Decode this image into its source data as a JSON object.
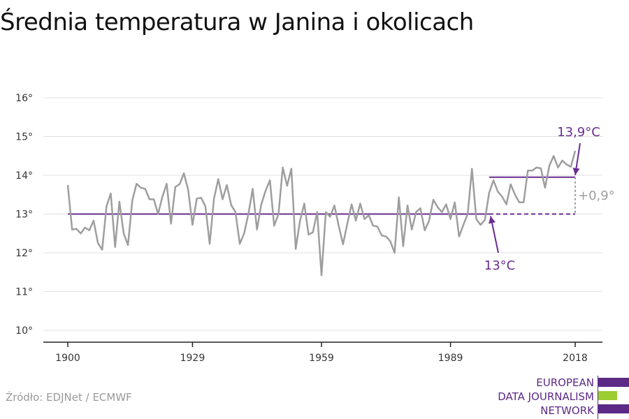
{
  "title": "Średnia temperatura w Janina i okolicach",
  "source": "Źródło: EDJNet / ECMWF",
  "logo": {
    "lines": [
      "EUROPEAN",
      "DATA JOURNALISM",
      "NETWORK"
    ],
    "colors": {
      "purple": "#5b2a86",
      "green": "#9acd32"
    }
  },
  "colors": {
    "series": "#9e9e9e",
    "baseline": "#6a2c91",
    "diff": "#9e9e9e",
    "grid": "#e0e0e0"
  },
  "chart_data": {
    "type": "line",
    "title": "Średnia temperatura w Janina i okolicach",
    "xlabel": "",
    "ylabel": "",
    "xlim": [
      1900,
      2018
    ],
    "ylim": [
      10,
      16
    ],
    "x_ticks": [
      1900,
      1929,
      1959,
      1989,
      2018
    ],
    "x_tick_labels": [
      "1900",
      "1929",
      "1959",
      "1989",
      "2018"
    ],
    "y_ticks": [
      10,
      11,
      12,
      13,
      14,
      15,
      16
    ],
    "y_tick_labels": [
      "10°",
      "11°",
      "12°",
      "13°",
      "14°",
      "15°",
      "16°"
    ],
    "grid": "horizontal",
    "series": [
      {
        "x": [
          1900,
          1901,
          1902,
          1903,
          1904,
          1905,
          1906,
          1907,
          1908,
          1909,
          1910,
          1911,
          1912,
          1913,
          1914,
          1915,
          1916,
          1917,
          1918,
          1919,
          1920,
          1921,
          1922,
          1923,
          1924,
          1925,
          1926,
          1927,
          1928,
          1929,
          1930,
          1931,
          1932,
          1933,
          1934,
          1935,
          1936,
          1937,
          1938,
          1939,
          1940,
          1941,
          1942,
          1943,
          1944,
          1945,
          1946,
          1947,
          1948,
          1949,
          1950,
          1951,
          1952,
          1953,
          1954,
          1955,
          1956,
          1957,
          1958,
          1959,
          1960,
          1961,
          1962,
          1963,
          1964,
          1965,
          1966,
          1967,
          1968,
          1969,
          1970,
          1971,
          1972,
          1973,
          1974,
          1975,
          1976,
          1977,
          1978,
          1979,
          1980,
          1981,
          1982,
          1983,
          1984,
          1985,
          1986,
          1987,
          1988,
          1989,
          1990,
          1991,
          1992,
          1993,
          1994,
          1995,
          1996,
          1997,
          1998,
          1999,
          2000,
          2001,
          2002,
          2003,
          2004,
          2005,
          2006,
          2007,
          2008,
          2009,
          2010,
          2011,
          2012,
          2013,
          2014,
          2015,
          2016,
          2017,
          2018
        ],
        "values": [
          13.75,
          12.6,
          12.62,
          12.5,
          12.65,
          12.58,
          12.83,
          12.25,
          12.08,
          13.2,
          13.53,
          12.15,
          13.32,
          12.5,
          12.2,
          13.35,
          13.78,
          13.68,
          13.65,
          13.38,
          13.38,
          13.0,
          13.45,
          13.78,
          12.75,
          13.7,
          13.77,
          14.05,
          13.62,
          12.72,
          13.4,
          13.42,
          13.2,
          12.23,
          13.4,
          13.9,
          13.38,
          13.75,
          13.23,
          13.05,
          12.23,
          12.5,
          13.0,
          13.65,
          12.6,
          13.25,
          13.6,
          13.87,
          12.7,
          13.0,
          14.2,
          13.73,
          14.17,
          12.1,
          12.82,
          13.27,
          12.47,
          12.53,
          13.05,
          11.42,
          13.05,
          12.93,
          13.22,
          12.7,
          12.22,
          12.75,
          13.25,
          12.83,
          13.27,
          12.87,
          12.97,
          12.7,
          12.68,
          12.45,
          12.42,
          12.3,
          12.0,
          13.43,
          12.17,
          13.22,
          12.6,
          13.05,
          13.15,
          12.58,
          12.82,
          13.37,
          13.18,
          13.05,
          13.25,
          12.87,
          13.3,
          12.42,
          12.72,
          13.0,
          14.17,
          12.87,
          12.72,
          12.85,
          13.55,
          13.87,
          13.58,
          13.45,
          13.25,
          13.77,
          13.5,
          13.3,
          13.3,
          14.12,
          14.12,
          14.2,
          14.18,
          13.68,
          14.25,
          14.5,
          14.2,
          14.38,
          14.28,
          14.22,
          14.63
        ]
      }
    ],
    "baseline": {
      "value": 13.0,
      "from": 1900,
      "to": 2018
    },
    "recent_mean": {
      "value": 13.95,
      "from": 1998,
      "to": 2018
    },
    "annotations": [
      {
        "text": "13,9°C",
        "x": 2018,
        "y": 13.95
      },
      {
        "text": "13°C",
        "x": 1998,
        "y": 13.0
      },
      {
        "text": "+0,9°",
        "x": 2018,
        "y": 13.475
      }
    ]
  }
}
